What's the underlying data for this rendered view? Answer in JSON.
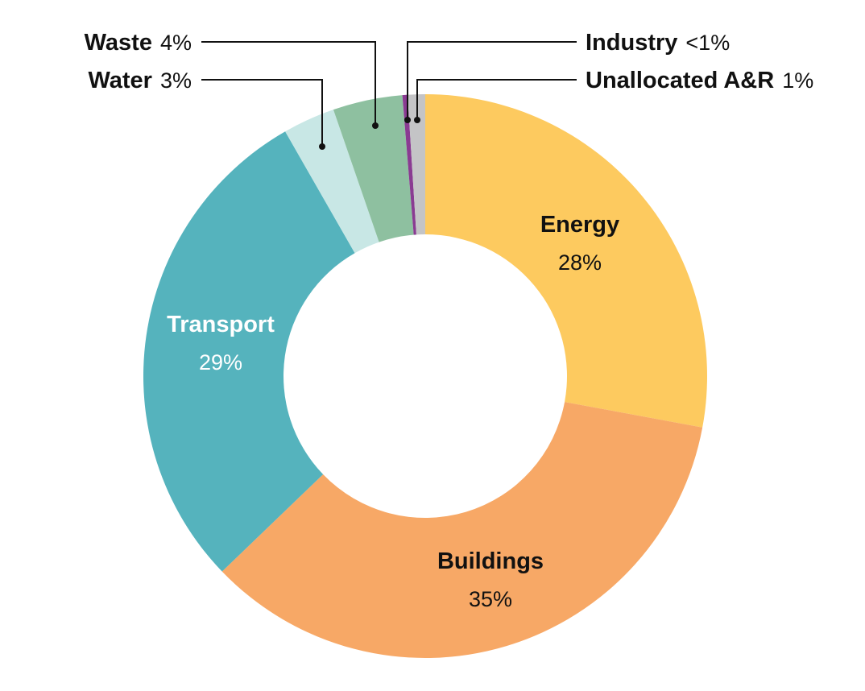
{
  "chart_data": {
    "type": "pie",
    "donut": true,
    "categories": [
      "Energy",
      "Buildings",
      "Transport",
      "Water",
      "Waste",
      "Industry",
      "Unallocated A&R"
    ],
    "values": [
      28,
      35,
      29,
      3,
      4,
      0.3,
      1
    ],
    "value_labels": [
      "28%",
      "35%",
      "29%",
      "3%",
      "4%",
      "<1%",
      "1%"
    ],
    "colors": [
      "#FDCA5F",
      "#F7A866",
      "#55B3BD",
      "#C8E7E5",
      "#8EC0A0",
      "#8A3B92",
      "#C4C4C6"
    ],
    "title": "",
    "legend": "none"
  }
}
